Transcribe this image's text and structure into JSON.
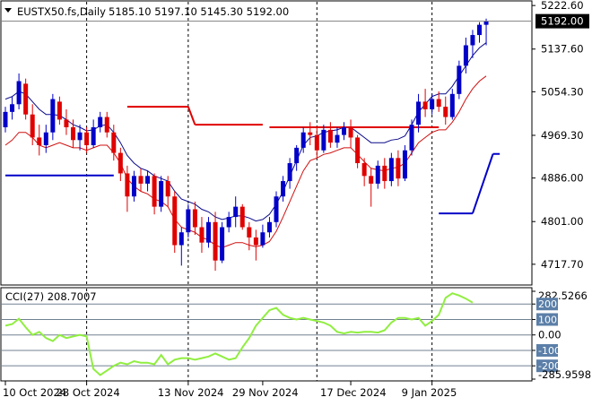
{
  "header": {
    "symbol_period": "EUSTX50.fs,Daily",
    "ohlc": "5185.10 5197.10 5145.30 5192.00"
  },
  "colors": {
    "bull": "#0000c8",
    "bear": "#e00000",
    "upper_band": "#0a0a8a",
    "lower_band": "#d01010",
    "stop_red": "#e00000",
    "stop_blue": "#0000c8",
    "cci": "#90ee40",
    "grid": "#808080",
    "price_tag_bg": "#000000"
  },
  "chart_data": [
    {
      "type": "candlestick",
      "title": "EUSTX50.fs,Daily",
      "price_axis": {
        "ticks": [
          "5222.60",
          "5137.60",
          "5054.30",
          "4969.30",
          "4886.00",
          "4801.00",
          "4717.70"
        ],
        "tick_values": [
          5222.6,
          5137.6,
          5054.3,
          4969.3,
          4886.0,
          4801.0,
          4717.7
        ],
        "current_price": "5192.00"
      },
      "time_axis": {
        "labels": [
          "10 Oct 2024",
          "28 Oct 2024",
          "13 Nov 2024",
          "29 Nov 2024",
          "17 Dec 2024",
          "9 Jan 2025"
        ]
      },
      "candles": [
        [
          4985,
          5025,
          4975,
          5015
        ],
        [
          5015,
          5045,
          5000,
          5030
        ],
        [
          5030,
          5090,
          5020,
          5075
        ],
        [
          5070,
          5080,
          5000,
          5010
        ],
        [
          5010,
          5030,
          4950,
          4965
        ],
        [
          4965,
          4990,
          4930,
          4950
        ],
        [
          4950,
          4990,
          4935,
          4975
        ],
        [
          4975,
          5050,
          4960,
          5040
        ],
        [
          5035,
          5045,
          4990,
          5000
        ],
        [
          5000,
          5020,
          4970,
          4985
        ],
        [
          4985,
          5000,
          4945,
          4960
        ],
        [
          4960,
          4990,
          4940,
          4975
        ],
        [
          4975,
          4985,
          4935,
          4950
        ],
        [
          4950,
          5000,
          4945,
          4985
        ],
        [
          4985,
          5015,
          4975,
          5005
        ],
        [
          5005,
          5015,
          4965,
          4975
        ],
        [
          4975,
          4990,
          4920,
          4935
        ],
        [
          4935,
          4945,
          4880,
          4895
        ],
        [
          4895,
          4910,
          4820,
          4850
        ],
        [
          4850,
          4900,
          4840,
          4890
        ],
        [
          4890,
          4905,
          4860,
          4875
        ],
        [
          4875,
          4900,
          4860,
          4890
        ],
        [
          4890,
          4895,
          4815,
          4830
        ],
        [
          4830,
          4890,
          4820,
          4880
        ],
        [
          4880,
          4890,
          4830,
          4850
        ],
        [
          4850,
          4860,
          4740,
          4755
        ],
        [
          4755,
          4790,
          4715,
          4780
        ],
        [
          4780,
          4835,
          4770,
          4825
        ],
        [
          4825,
          4840,
          4775,
          4790
        ],
        [
          4790,
          4810,
          4740,
          4760
        ],
        [
          4760,
          4810,
          4750,
          4800
        ],
        [
          4800,
          4820,
          4705,
          4725
        ],
        [
          4725,
          4800,
          4720,
          4790
        ],
        [
          4790,
          4820,
          4780,
          4810
        ],
        [
          4810,
          4850,
          4790,
          4830
        ],
        [
          4830,
          4835,
          4785,
          4790
        ],
        [
          4790,
          4800,
          4745,
          4770
        ],
        [
          4770,
          4785,
          4725,
          4755
        ],
        [
          4755,
          4795,
          4750,
          4780
        ],
        [
          4780,
          4810,
          4770,
          4800
        ],
        [
          4800,
          4860,
          4790,
          4850
        ],
        [
          4850,
          4890,
          4840,
          4880
        ],
        [
          4880,
          4925,
          4865,
          4915
        ],
        [
          4915,
          4950,
          4900,
          4945
        ],
        [
          4945,
          4985,
          4935,
          4975
        ],
        [
          4975,
          4995,
          4950,
          4970
        ],
        [
          4970,
          4985,
          4925,
          4940
        ],
        [
          4940,
          4990,
          4935,
          4980
        ],
        [
          4980,
          4995,
          4945,
          4955
        ],
        [
          4955,
          4985,
          4945,
          4970
        ],
        [
          4970,
          4995,
          4960,
          4985
        ],
        [
          4985,
          5000,
          4945,
          4965
        ],
        [
          4965,
          4970,
          4905,
          4915
        ],
        [
          4915,
          4925,
          4870,
          4890
        ],
        [
          4890,
          4905,
          4830,
          4875
        ],
        [
          4875,
          4920,
          4865,
          4910
        ],
        [
          4910,
          4925,
          4865,
          4880
        ],
        [
          4880,
          4935,
          4870,
          4925
        ],
        [
          4925,
          4940,
          4870,
          4885
        ],
        [
          4885,
          4950,
          4880,
          4940
        ],
        [
          4940,
          5000,
          4930,
          4990
        ],
        [
          4990,
          5050,
          4975,
          5035
        ],
        [
          5035,
          5060,
          5005,
          5020
        ],
        [
          5020,
          5050,
          5010,
          5040
        ],
        [
          5040,
          5055,
          5015,
          5025
        ],
        [
          5025,
          5045,
          4990,
          5005
        ],
        [
          5005,
          5060,
          5000,
          5050
        ],
        [
          5050,
          5115,
          5040,
          5105
        ],
        [
          5105,
          5160,
          5090,
          5145
        ],
        [
          5145,
          5175,
          5120,
          5165
        ],
        [
          5165,
          5190,
          5150,
          5185
        ],
        [
          5185,
          5197,
          5145,
          5192
        ]
      ],
      "upper_band": [
        5040,
        5045,
        5055,
        5050,
        5035,
        5020,
        5010,
        5010,
        5008,
        5000,
        4990,
        4985,
        4978,
        4980,
        4988,
        4990,
        4975,
        4955,
        4930,
        4915,
        4905,
        4900,
        4890,
        4885,
        4880,
        4860,
        4845,
        4840,
        4835,
        4825,
        4820,
        4810,
        4805,
        4808,
        4812,
        4812,
        4808,
        4802,
        4805,
        4815,
        4835,
        4860,
        4890,
        4920,
        4950,
        4965,
        4968,
        4975,
        4978,
        4980,
        4985,
        4985,
        4975,
        4965,
        4955,
        4955,
        4955,
        4960,
        4962,
        4968,
        4990,
        5015,
        5030,
        5045,
        5050,
        5050,
        5065,
        5085,
        5105,
        5125,
        5140,
        5150
      ],
      "lower_band": [
        4950,
        4960,
        4975,
        4975,
        4965,
        4950,
        4945,
        4950,
        4955,
        4950,
        4945,
        4945,
        4940,
        4945,
        4950,
        4950,
        4935,
        4915,
        4885,
        4870,
        4860,
        4855,
        4845,
        4840,
        4830,
        4805,
        4790,
        4785,
        4780,
        4770,
        4765,
        4755,
        4750,
        4755,
        4760,
        4760,
        4755,
        4752,
        4755,
        4762,
        4782,
        4810,
        4840,
        4870,
        4900,
        4920,
        4925,
        4932,
        4935,
        4940,
        4945,
        4945,
        4932,
        4918,
        4905,
        4902,
        4900,
        4905,
        4907,
        4915,
        4935,
        4955,
        4965,
        4975,
        4980,
        4980,
        4995,
        5015,
        5040,
        5060,
        5075,
        5085
      ],
      "stop_red_segments": [
        {
          "from": 18,
          "to": 27,
          "level": 5025
        },
        {
          "from": 27,
          "to": 28,
          "level": 5025,
          "to_level": 4990
        },
        {
          "from": 28,
          "to": 38,
          "level": 4990
        },
        {
          "from": 39,
          "to": 64,
          "level": 4985
        }
      ],
      "stop_blue_segments": [
        {
          "from": 0,
          "to": 16,
          "level": 4891
        },
        {
          "from": 64,
          "to": 69,
          "level": 4817
        },
        {
          "from": 69,
          "to": 72,
          "level": 4817,
          "to_level": 4933
        },
        {
          "from": 72,
          "to": 73,
          "level": 4933
        }
      ],
      "vertical_gridlines_at": [
        12,
        27,
        46,
        63
      ]
    },
    {
      "type": "line",
      "title": "CCI(27) 208.7007",
      "label": "CCI(27)",
      "current_value": "208.7007",
      "axis_ticks": [
        "282.5266",
        "200",
        "100",
        "0.00",
        "-100",
        "-200",
        "-285.9598"
      ],
      "levels": [
        200,
        100,
        0,
        -100,
        -200
      ],
      "ylim": [
        -285.9598,
        282.5266
      ],
      "values": [
        60,
        70,
        105,
        50,
        0,
        20,
        -20,
        -40,
        0,
        -20,
        -10,
        0,
        -10,
        -220,
        -260,
        -230,
        -200,
        -180,
        -190,
        -170,
        -180,
        -180,
        -190,
        -130,
        -190,
        -160,
        -150,
        -150,
        -160,
        -150,
        -140,
        -120,
        -140,
        -160,
        -150,
        -80,
        -20,
        60,
        110,
        160,
        175,
        130,
        110,
        100,
        110,
        100,
        90,
        80,
        60,
        20,
        10,
        20,
        15,
        20,
        20,
        15,
        30,
        80,
        110,
        110,
        100,
        110,
        60,
        90,
        130,
        240,
        270,
        255,
        235,
        208.7
      ]
    }
  ]
}
